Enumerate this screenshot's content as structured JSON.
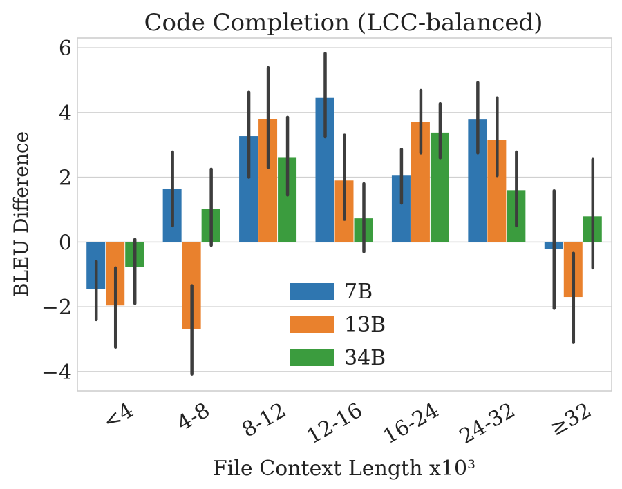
{
  "chart_data": {
    "type": "bar",
    "title": "Code Completion (LCC-balanced)",
    "xlabel": "File Context Length x10³",
    "ylabel": "BLEU Difference",
    "ylim": [
      -4.6,
      6.3
    ],
    "yticks": [
      -4,
      -2,
      0,
      2,
      4,
      6
    ],
    "ytick_labels": [
      "−4",
      "−2",
      "0",
      "2",
      "4",
      "6"
    ],
    "grid": true,
    "legend_position": "lower-center",
    "categories": [
      "<4",
      "4-8",
      "8-12",
      "12-16",
      "16-24",
      "24-32",
      "≥32"
    ],
    "series": [
      {
        "name": "7B",
        "color": "#2f76b0",
        "values": [
          -1.45,
          1.65,
          3.27,
          4.45,
          2.05,
          3.78,
          -0.22
        ],
        "err_low": [
          -2.4,
          0.5,
          2.0,
          3.25,
          1.2,
          2.75,
          -2.05
        ],
        "err_high": [
          -0.6,
          2.78,
          4.62,
          5.82,
          2.86,
          4.92,
          1.58
        ]
      },
      {
        "name": "13B",
        "color": "#e9812d",
        "values": [
          -1.96,
          -2.68,
          3.8,
          1.9,
          3.7,
          3.16,
          -1.7
        ],
        "err_low": [
          -3.25,
          -4.08,
          2.3,
          0.7,
          2.75,
          2.05,
          -3.1
        ],
        "err_high": [
          -0.8,
          -1.35,
          5.38,
          3.3,
          4.68,
          4.45,
          -0.35
        ]
      },
      {
        "name": "34B",
        "color": "#3b9c3e",
        "values": [
          -0.78,
          1.03,
          2.6,
          0.73,
          3.38,
          1.6,
          0.79
        ],
        "err_low": [
          -1.9,
          -0.1,
          1.45,
          -0.3,
          2.6,
          0.5,
          -0.8
        ],
        "err_high": [
          0.08,
          2.25,
          3.85,
          1.8,
          4.27,
          2.78,
          2.55
        ]
      }
    ]
  }
}
